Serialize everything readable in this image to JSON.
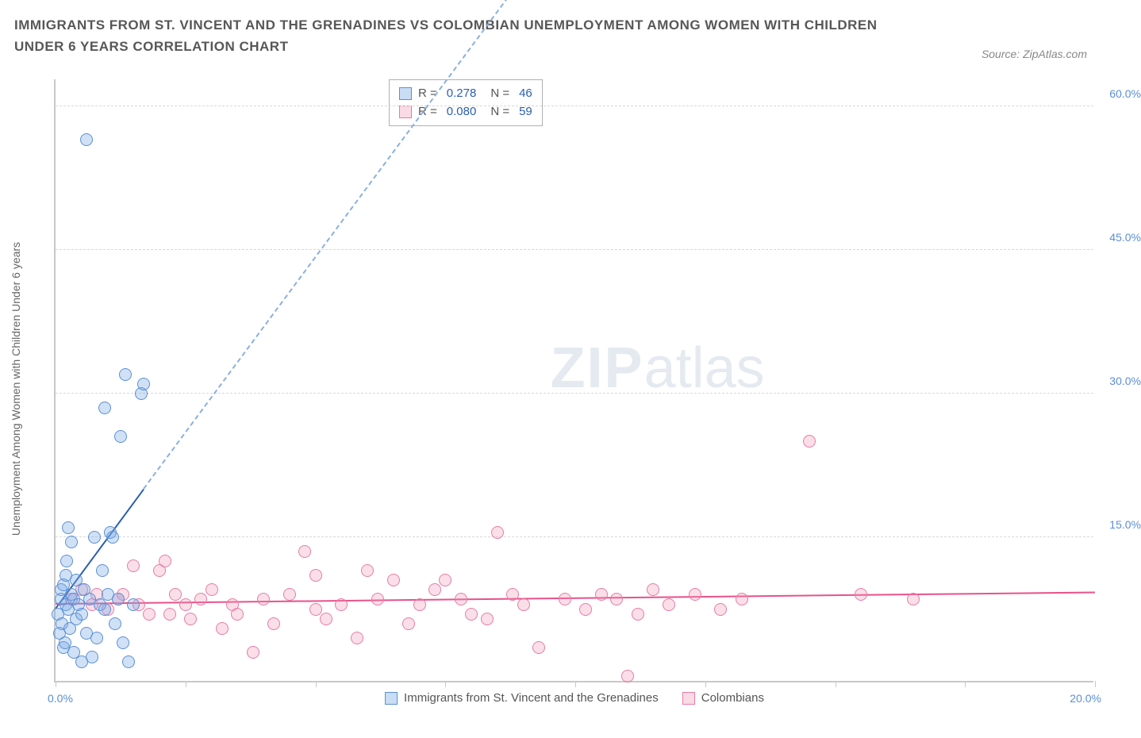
{
  "header": {
    "title": "IMMIGRANTS FROM ST. VINCENT AND THE GRENADINES VS COLOMBIAN UNEMPLOYMENT AMONG WOMEN WITH CHILDREN UNDER 6 YEARS CORRELATION CHART",
    "source": "Source: ZipAtlas.com"
  },
  "axes": {
    "y_label": "Unemployment Among Women with Children Under 6 years",
    "x_min": 0.0,
    "x_max": 20.0,
    "x_min_label": "0.0%",
    "x_max_label": "20.0%",
    "y_min": 0.0,
    "y_max": 63.0,
    "y_ticks": [
      15.0,
      30.0,
      45.0,
      60.0
    ],
    "y_tick_labels": [
      "15.0%",
      "30.0%",
      "45.0%",
      "60.0%"
    ],
    "x_tick_positions": [
      0,
      2.5,
      5.0,
      7.5,
      10.0,
      12.5,
      15.0,
      17.5,
      20.0
    ],
    "grid_color": "#d8d8d8",
    "axis_color": "#c8c8c8"
  },
  "series": {
    "blue": {
      "name": "Immigrants from St. Vincent and the Grenadines",
      "fill": "rgba(120,170,230,0.35)",
      "stroke": "#5b8fd6",
      "trend_color": "#2b5fb0",
      "R": "0.278",
      "N": "46",
      "trend": {
        "x1": 0.0,
        "y1": 7.5,
        "x2": 1.7,
        "y2": 20.0,
        "dash_to_x": 8.8,
        "dash_to_y": 72.0
      },
      "points": [
        [
          0.05,
          7.0
        ],
        [
          0.08,
          5.0
        ],
        [
          0.1,
          8.5
        ],
        [
          0.1,
          9.5
        ],
        [
          0.12,
          6.0
        ],
        [
          0.15,
          3.5
        ],
        [
          0.15,
          10.0
        ],
        [
          0.18,
          4.0
        ],
        [
          0.2,
          11.0
        ],
        [
          0.2,
          8.0
        ],
        [
          0.22,
          12.5
        ],
        [
          0.25,
          7.5
        ],
        [
          0.25,
          16.0
        ],
        [
          0.28,
          5.5
        ],
        [
          0.3,
          9.0
        ],
        [
          0.3,
          14.5
        ],
        [
          0.35,
          8.5
        ],
        [
          0.35,
          3.0
        ],
        [
          0.4,
          6.5
        ],
        [
          0.4,
          10.5
        ],
        [
          0.45,
          8.0
        ],
        [
          0.5,
          7.0
        ],
        [
          0.55,
          9.5
        ],
        [
          0.6,
          5.0
        ],
        [
          0.65,
          8.5
        ],
        [
          0.7,
          2.5
        ],
        [
          0.75,
          15.0
        ],
        [
          0.8,
          4.5
        ],
        [
          0.85,
          8.0
        ],
        [
          0.9,
          11.5
        ],
        [
          0.95,
          7.5
        ],
        [
          1.0,
          9.0
        ],
        [
          1.05,
          15.5
        ],
        [
          1.1,
          15.0
        ],
        [
          1.15,
          6.0
        ],
        [
          1.2,
          8.5
        ],
        [
          1.3,
          4.0
        ],
        [
          1.4,
          2.0
        ],
        [
          0.5,
          2.0
        ],
        [
          0.6,
          56.5
        ],
        [
          1.35,
          32.0
        ],
        [
          1.65,
          30.0
        ],
        [
          1.7,
          31.0
        ],
        [
          0.95,
          28.5
        ],
        [
          1.25,
          25.5
        ],
        [
          1.5,
          8.0
        ]
      ]
    },
    "pink": {
      "name": "Colombians",
      "fill": "rgba(240,150,180,0.3)",
      "stroke": "#e87ba5",
      "trend_color": "#e8518a",
      "R": "0.080",
      "N": "59",
      "trend": {
        "x1": 0.0,
        "y1": 8.0,
        "x2": 20.0,
        "y2": 9.2
      },
      "points": [
        [
          0.3,
          8.5
        ],
        [
          0.5,
          9.5
        ],
        [
          0.7,
          8.0
        ],
        [
          0.8,
          9.0
        ],
        [
          1.0,
          7.5
        ],
        [
          1.2,
          8.5
        ],
        [
          1.3,
          9.0
        ],
        [
          1.5,
          12.0
        ],
        [
          1.6,
          8.0
        ],
        [
          1.8,
          7.0
        ],
        [
          2.0,
          11.5
        ],
        [
          2.1,
          12.5
        ],
        [
          2.2,
          7.0
        ],
        [
          2.3,
          9.0
        ],
        [
          2.5,
          8.0
        ],
        [
          2.6,
          6.5
        ],
        [
          2.8,
          8.5
        ],
        [
          3.0,
          9.5
        ],
        [
          3.2,
          5.5
        ],
        [
          3.4,
          8.0
        ],
        [
          3.5,
          7.0
        ],
        [
          3.8,
          3.0
        ],
        [
          4.0,
          8.5
        ],
        [
          4.2,
          6.0
        ],
        [
          4.5,
          9.0
        ],
        [
          4.8,
          13.5
        ],
        [
          5.0,
          7.5
        ],
        [
          5.0,
          11.0
        ],
        [
          5.2,
          6.5
        ],
        [
          5.5,
          8.0
        ],
        [
          5.8,
          4.5
        ],
        [
          6.0,
          11.5
        ],
        [
          6.2,
          8.5
        ],
        [
          6.5,
          10.5
        ],
        [
          6.8,
          6.0
        ],
        [
          7.0,
          8.0
        ],
        [
          7.3,
          9.5
        ],
        [
          7.5,
          10.5
        ],
        [
          7.8,
          8.5
        ],
        [
          8.0,
          7.0
        ],
        [
          8.3,
          6.5
        ],
        [
          8.5,
          15.5
        ],
        [
          8.8,
          9.0
        ],
        [
          9.0,
          8.0
        ],
        [
          9.3,
          3.5
        ],
        [
          9.8,
          8.5
        ],
        [
          10.2,
          7.5
        ],
        [
          10.5,
          9.0
        ],
        [
          10.8,
          8.5
        ],
        [
          11.0,
          0.5
        ],
        [
          11.2,
          7.0
        ],
        [
          11.5,
          9.5
        ],
        [
          11.8,
          8.0
        ],
        [
          12.3,
          9.0
        ],
        [
          12.8,
          7.5
        ],
        [
          13.2,
          8.5
        ],
        [
          14.5,
          25.0
        ],
        [
          15.5,
          9.0
        ],
        [
          16.5,
          8.5
        ]
      ]
    }
  },
  "stats_legend": {
    "r_label": "R =",
    "n_label": "N ="
  },
  "watermark": {
    "zip": "ZIP",
    "atlas": "atlas"
  },
  "colors": {
    "title": "#575757",
    "tick_blue": "#5b8fd6",
    "text": "#555555"
  }
}
